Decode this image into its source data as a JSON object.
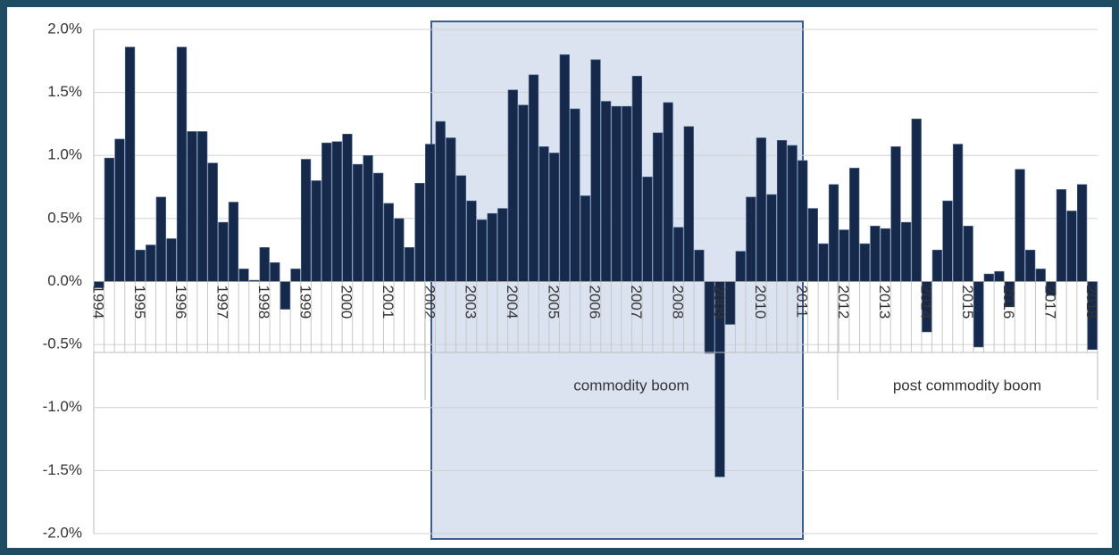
{
  "chart_data": {
    "type": "bar",
    "categories": [
      "1994",
      null,
      null,
      null,
      "1995",
      null,
      null,
      null,
      "1996",
      null,
      null,
      null,
      "1997",
      null,
      null,
      null,
      "1998",
      null,
      null,
      null,
      "1999",
      null,
      null,
      null,
      "2000",
      null,
      null,
      null,
      "2001",
      null,
      null,
      null,
      "2002",
      null,
      null,
      null,
      "2003",
      null,
      null,
      null,
      "2004",
      null,
      null,
      null,
      "2005",
      null,
      null,
      null,
      "2006",
      null,
      null,
      null,
      "2007",
      null,
      null,
      null,
      "2008",
      null,
      null,
      null,
      "2009",
      null,
      null,
      null,
      "2010",
      null,
      null,
      null,
      "2011",
      null,
      null,
      null,
      "2012",
      null,
      null,
      null,
      "2013",
      null,
      null,
      null,
      "2014",
      null,
      null,
      null,
      "2015",
      null,
      null,
      null,
      "2016",
      null,
      null,
      null,
      "2017",
      null,
      null,
      null,
      "2018"
    ],
    "values": [
      -0.05,
      0.98,
      1.13,
      1.86,
      0.25,
      0.29,
      0.67,
      0.34,
      1.86,
      1.19,
      1.19,
      0.94,
      0.47,
      0.63,
      0.1,
      0.01,
      0.27,
      0.15,
      -0.22,
      0.1,
      0.97,
      0.8,
      1.1,
      1.11,
      1.17,
      0.93,
      1.0,
      0.86,
      0.62,
      0.5,
      0.27,
      0.78,
      1.09,
      1.27,
      1.14,
      0.84,
      0.64,
      0.49,
      0.54,
      0.58,
      1.52,
      1.4,
      1.64,
      1.07,
      1.02,
      1.8,
      1.37,
      0.68,
      1.76,
      1.43,
      1.39,
      1.39,
      1.63,
      0.83,
      1.18,
      1.42,
      0.43,
      1.23,
      0.25,
      -0.57,
      -1.55,
      -0.34,
      0.24,
      0.67,
      1.14,
      0.69,
      1.12,
      1.08,
      0.96,
      0.58,
      0.3,
      0.77,
      0.41,
      0.9,
      0.3,
      0.44,
      0.42,
      1.07,
      0.47,
      1.29,
      -0.4,
      0.25,
      0.64,
      1.09,
      0.44,
      -0.52,
      0.06,
      0.08,
      -0.2,
      0.89,
      0.25,
      0.1,
      -0.11,
      0.73,
      0.56,
      0.77,
      -0.54
    ],
    "color": "#17294a",
    "ylim": [
      -2.0,
      2.0
    ],
    "yticks": [
      {
        "value": -2.0,
        "label": "-2.0%"
      },
      {
        "value": -1.5,
        "label": "-1.5%"
      },
      {
        "value": -1.0,
        "label": "-1.0%"
      },
      {
        "value": -0.5,
        "label": "-0.5%"
      },
      {
        "value": 0.0,
        "label": "0.0%"
      },
      {
        "value": 0.5,
        "label": "0.5%"
      },
      {
        "value": 1.0,
        "label": "1.0%"
      },
      {
        "value": 1.5,
        "label": "1.5%"
      },
      {
        "value": 2.0,
        "label": "2.0%"
      }
    ],
    "grid": true,
    "annotations": [
      "commodity boom",
      "post commodity boom"
    ]
  }
}
